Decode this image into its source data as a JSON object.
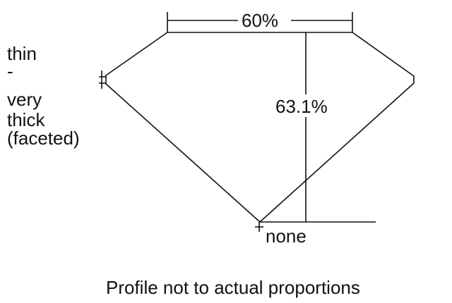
{
  "labels": {
    "thickness_lines": [
      "thin",
      "-",
      "very",
      "thick",
      "(faceted)"
    ],
    "table_width": "60%",
    "total_depth": "63.1%",
    "culet": "none",
    "caption": "Profile not to actual proportions"
  },
  "colors": {
    "line": "#111111",
    "background": "#ffffff"
  }
}
